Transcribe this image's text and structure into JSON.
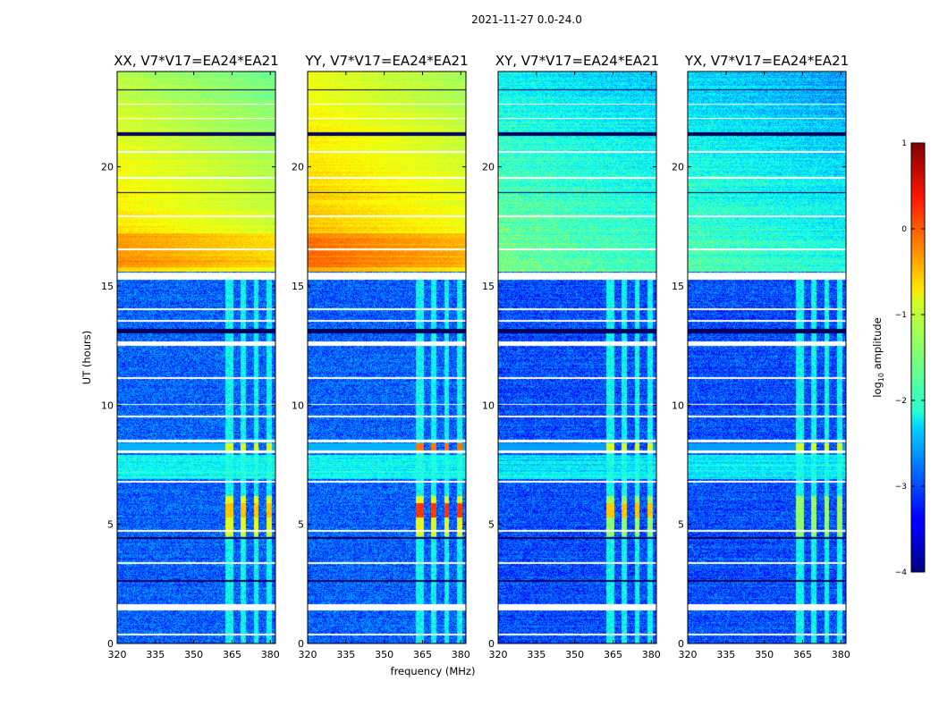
{
  "chart_data": {
    "type": "heatmap",
    "suptitle": "2021-11-27 0.0-24.0",
    "xlabel": "frequency (MHz)",
    "ylabel": "UT (hours)",
    "xlim": [
      320,
      382
    ],
    "ylim": [
      0,
      24
    ],
    "xticks": [
      "320",
      "335",
      "350",
      "365",
      "380"
    ],
    "yticks": [
      "0",
      "5",
      "10",
      "15",
      "20"
    ],
    "panels": [
      {
        "title": "XX, V7*V17=EA24*EA21",
        "pol": "XX"
      },
      {
        "title": "YY, V7*V17=EA24*EA21",
        "pol": "YY"
      },
      {
        "title": "XY, V7*V17=EA24*EA21",
        "pol": "XY"
      },
      {
        "title": "YX, V7*V17=EA24*EA21",
        "pol": "YX"
      }
    ],
    "colorbar": {
      "label": "log10 amplitude",
      "label_prefix": "log",
      "label_sub": "10",
      "label_suffix": " amplitude",
      "range": [
        -4,
        1
      ],
      "ticks": [
        "−4",
        "−3",
        "−2",
        "−1",
        "0",
        "1"
      ],
      "colormap": "jet"
    },
    "features": {
      "rfi_channels_mhz": [
        [
          362.5,
          365.5
        ],
        [
          368.5,
          370.5
        ],
        [
          373.5,
          375.5
        ],
        [
          378.5,
          380.5
        ]
      ],
      "strong_rfi_burst_hours": [
        4.5,
        6.2
      ],
      "flag_burst_hours": [
        8.1,
        8.4
      ],
      "high_amplitude_block_hours": [
        15.6,
        24.0
      ],
      "approx_log10_level_quiet": {
        "XX": -2.9,
        "YY": -2.9,
        "XY": -3.0,
        "YX": -3.0
      },
      "approx_log10_level_high_block": {
        "XX": -1.2,
        "YY": -1.0,
        "XY": -2.1,
        "YX": -2.3
      }
    }
  }
}
